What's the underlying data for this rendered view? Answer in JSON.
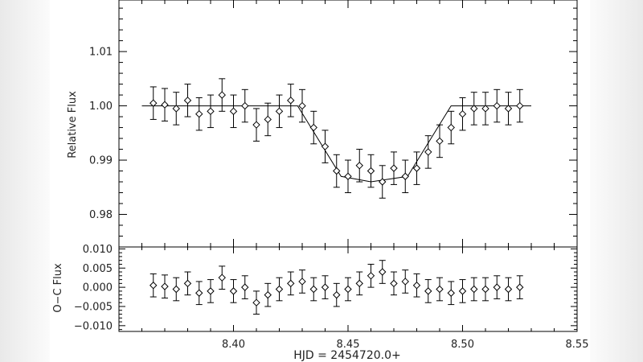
{
  "chart_data": [
    {
      "type": "scatter",
      "panel": "top",
      "xlabel": "",
      "ylabel": "Relative Flux",
      "xlim": [
        8.35,
        8.55
      ],
      "ylim": [
        0.974,
        1.0195
      ],
      "xticks": [
        8.4,
        8.45,
        8.5,
        8.55
      ],
      "xtick_labels": [
        "",
        "",
        "",
        ""
      ],
      "yticks": [
        0.98,
        0.99,
        1.0,
        1.01
      ],
      "ytick_labels": [
        "0.98",
        "0.99",
        "1.00",
        "1.01"
      ],
      "marker": "diamond",
      "error_bars": true,
      "grid": false,
      "model": {
        "x": [
          8.36,
          8.428,
          8.447,
          8.46,
          8.476,
          8.495,
          8.53
        ],
        "y": [
          1.0,
          1.0,
          0.987,
          0.986,
          0.987,
          1.0,
          1.0
        ]
      },
      "series": [
        {
          "x": [
            8.365,
            8.37,
            8.375,
            8.38,
            8.385,
            8.39,
            8.395,
            8.4,
            8.405,
            8.41,
            8.415,
            8.42,
            8.425,
            8.43,
            8.435,
            8.44,
            8.445,
            8.45,
            8.455,
            8.46,
            8.465,
            8.47,
            8.475,
            8.48,
            8.485,
            8.49,
            8.495,
            8.5,
            8.505,
            8.51,
            8.515,
            8.52,
            8.525
          ],
          "y": [
            1.0005,
            1.0002,
            0.9995,
            1.001,
            0.9985,
            0.999,
            1.002,
            0.999,
            1.0,
            0.9965,
            0.9975,
            0.999,
            1.001,
            1.0,
            0.996,
            0.9925,
            0.988,
            0.987,
            0.989,
            0.988,
            0.986,
            0.9885,
            0.987,
            0.9885,
            0.9915,
            0.9935,
            0.996,
            0.9985,
            0.9995,
            0.9995,
            1.0,
            0.9995,
            1.0
          ],
          "yerr": [
            0.003,
            0.003,
            0.003,
            0.003,
            0.003,
            0.003,
            0.003,
            0.003,
            0.003,
            0.003,
            0.003,
            0.003,
            0.003,
            0.003,
            0.003,
            0.003,
            0.003,
            0.003,
            0.003,
            0.003,
            0.003,
            0.003,
            0.003,
            0.003,
            0.003,
            0.003,
            0.003,
            0.003,
            0.003,
            0.003,
            0.003,
            0.003,
            0.003
          ]
        }
      ]
    },
    {
      "type": "scatter",
      "panel": "bottom",
      "xlabel": "HJD = 2454720.0+",
      "ylabel": "O−C Flux",
      "xlim": [
        8.35,
        8.55
      ],
      "ylim": [
        -0.0115,
        0.0105
      ],
      "xticks": [
        8.4,
        8.45,
        8.5,
        8.55
      ],
      "xtick_labels": [
        "8.40",
        "8.45",
        "8.50",
        "8.55"
      ],
      "yticks": [
        -0.01,
        -0.005,
        0.0,
        0.005,
        0.01
      ],
      "ytick_labels": [
        "−0.010",
        "−0.005",
        "0.000",
        "0.005",
        "0.010"
      ],
      "marker": "diamond",
      "error_bars": true,
      "grid": false,
      "series": [
        {
          "x": [
            8.365,
            8.37,
            8.375,
            8.38,
            8.385,
            8.39,
            8.395,
            8.4,
            8.405,
            8.41,
            8.415,
            8.42,
            8.425,
            8.43,
            8.435,
            8.44,
            8.445,
            8.45,
            8.455,
            8.46,
            8.465,
            8.47,
            8.475,
            8.48,
            8.485,
            8.49,
            8.495,
            8.5,
            8.505,
            8.51,
            8.515,
            8.52,
            8.525
          ],
          "y": [
            0.0005,
            0.0002,
            -0.0005,
            0.001,
            -0.0015,
            -0.001,
            0.0025,
            -0.001,
            0.0,
            -0.004,
            -0.002,
            -0.0005,
            0.001,
            0.0015,
            -0.0005,
            0.0,
            -0.002,
            -0.0005,
            0.001,
            0.003,
            0.004,
            0.001,
            0.0015,
            0.0005,
            -0.001,
            -0.0005,
            -0.0015,
            -0.001,
            -0.0005,
            -0.0005,
            0.0,
            -0.0005,
            0.0
          ],
          "yerr": [
            0.003,
            0.003,
            0.003,
            0.003,
            0.003,
            0.003,
            0.003,
            0.003,
            0.003,
            0.003,
            0.003,
            0.003,
            0.003,
            0.003,
            0.003,
            0.003,
            0.003,
            0.003,
            0.003,
            0.003,
            0.003,
            0.003,
            0.003,
            0.003,
            0.003,
            0.003,
            0.003,
            0.003,
            0.003,
            0.003,
            0.003,
            0.003,
            0.003
          ]
        }
      ]
    }
  ]
}
